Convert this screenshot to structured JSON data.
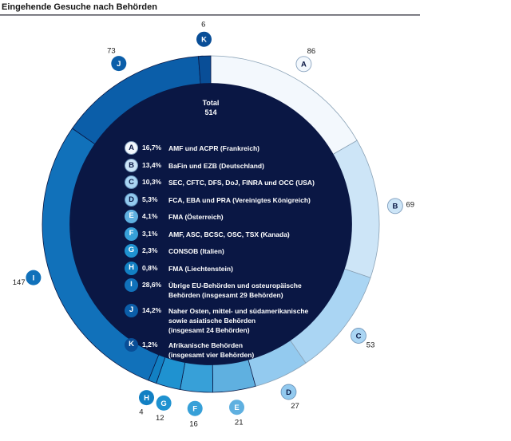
{
  "header": {
    "title": "Eingehende Gesuche nach Behörden"
  },
  "chart_data": {
    "type": "pie",
    "subtype": "donut",
    "title": "Eingehende Gesuche nach Behörden",
    "center_label": "Total",
    "total": 514,
    "start_angle_deg": 0,
    "direction": "clockwise",
    "legend_position": "center",
    "segments": [
      {
        "letter": "A",
        "value": 86,
        "pct": "16,7%",
        "label": "AMF und ACPR (Frankreich)",
        "color": "#f3f8fd",
        "text_on_color": "dark"
      },
      {
        "letter": "B",
        "value": 69,
        "pct": "13,4%",
        "label": "BaFin und EZB (Deutschland)",
        "color": "#cde5f7",
        "text_on_color": "dark"
      },
      {
        "letter": "C",
        "value": 53,
        "pct": "10,3%",
        "label": "SEC, CFTC, DFS, DoJ, FINRA und OCC (USA)",
        "color": "#aad5f3",
        "text_on_color": "dark"
      },
      {
        "letter": "D",
        "value": 27,
        "pct": "5,3%",
        "label": "FCA, EBA und PRA (Vereinigtes Königreich)",
        "color": "#93caef",
        "text_on_color": "dark"
      },
      {
        "letter": "E",
        "value": 21,
        "pct": "4,1%",
        "label": "FMA (Österreich)",
        "color": "#5fb0e0",
        "text_on_color": "light"
      },
      {
        "letter": "F",
        "value": 16,
        "pct": "3,1%",
        "label": "AMF, ASC, BCSC, OSC, TSX (Kanada)",
        "color": "#37a0d8",
        "text_on_color": "light"
      },
      {
        "letter": "G",
        "value": 12,
        "pct": "2,3%",
        "label": "CONSOB (Italien)",
        "color": "#1f92d0",
        "text_on_color": "light"
      },
      {
        "letter": "H",
        "value": 4,
        "pct": "0,8%",
        "label": "FMA (Liechtenstein)",
        "color": "#1280c3",
        "text_on_color": "light"
      },
      {
        "letter": "I",
        "value": 147,
        "pct": "28,6%",
        "label": "Übrige EU-Behörden und osteuropäische\nBehörden (insgesamt 29 Behörden)",
        "color": "#1171ba",
        "text_on_color": "light"
      },
      {
        "letter": "J",
        "value": 73,
        "pct": "14,2%",
        "label": "Naher Osten, mittel- und südamerikanische\nsowie asiatische Behörden\n(insgesamt 24 Behörden)",
        "color": "#0b5ea9",
        "text_on_color": "light"
      },
      {
        "letter": "K",
        "value": 6,
        "pct": "1,2%",
        "label": "Afrikanische Behörden\n(insgesamt vier Behörden)",
        "color": "#094e97",
        "text_on_color": "light"
      }
    ],
    "colors": {
      "inner_circle": "#0a1744",
      "dark_segment_stroke": "#0a1744",
      "light_segment_stroke": "#8aa2b6",
      "value_label": "#1a1a1a",
      "dark_letter": "#0a1744",
      "light_letter": "#ffffff"
    }
  }
}
